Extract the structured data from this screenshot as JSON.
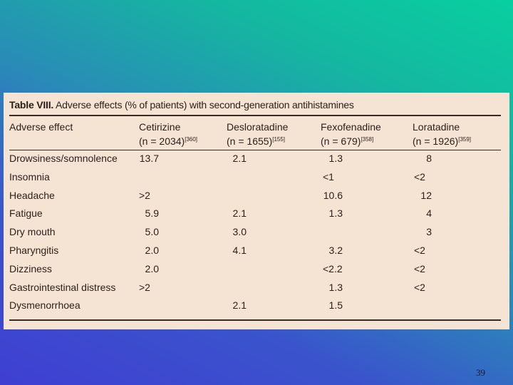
{
  "table": {
    "title_bold": "Table VIII.",
    "title_rest": "Adverse effects (% of patients) with second-generation antihistamines",
    "header": [
      {
        "name": "Adverse effect",
        "n": "",
        "ref": ""
      },
      {
        "name": "Cetirizine",
        "n": "(n = 2034)",
        "ref": "[360]"
      },
      {
        "name": "Desloratadine",
        "n": "(n = 1655)",
        "ref": "[155]"
      },
      {
        "name": "Fexofenadine",
        "n": "(n = 679)",
        "ref": "[358]"
      },
      {
        "name": "Loratadine",
        "n": "(n = 1926)",
        "ref": "[359]"
      }
    ],
    "rows": [
      [
        "Drowsiness/somnolence",
        "13.7",
        "2.1",
        "1.3",
        "8"
      ],
      [
        "Insomnia",
        "",
        "",
        "<1",
        "<2"
      ],
      [
        "Headache",
        ">2",
        "",
        "10.6",
        "12"
      ],
      [
        "Fatigue",
        "5.9",
        "2.1",
        "1.3",
        "4"
      ],
      [
        "Dry mouth",
        "5.0",
        "3.0",
        "",
        "3"
      ],
      [
        "Pharyngitis",
        "2.0",
        "4.1",
        "3.2",
        "<2"
      ],
      [
        "Dizziness",
        "2.0",
        "",
        "<2.2",
        "<2"
      ],
      [
        "Gastrointestinal distress",
        ">2",
        "",
        "1.3",
        "<2"
      ],
      [
        "Dysmenorrhoea",
        "",
        "2.1",
        "1.5",
        ""
      ]
    ]
  },
  "page_number": "39"
}
